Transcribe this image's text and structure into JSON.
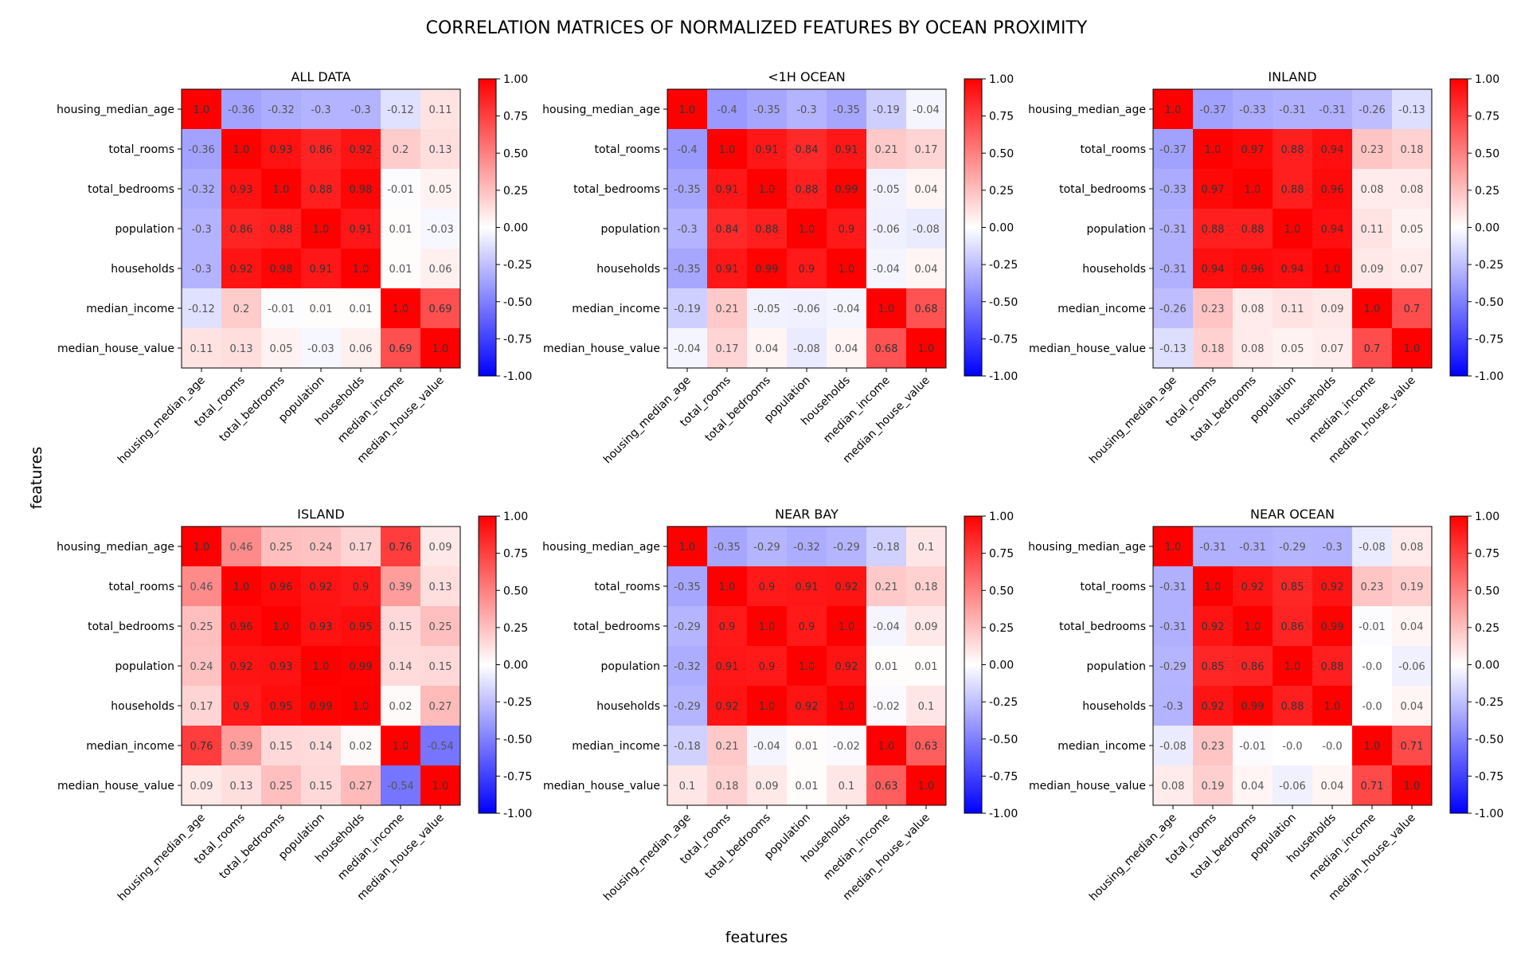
{
  "figure": {
    "title": "CORRELATION MATRICES OF NORMALIZED FEATURES BY OCEAN PROXIMITY",
    "xlabel": "features",
    "ylabel": "features"
  },
  "colors": {
    "low": "#0000ff",
    "mid": "#ffffff",
    "high": "#ff0000",
    "cell_text": "#555555",
    "cell_text_strong": "#333333"
  },
  "chart_data": [
    {
      "type": "heatmap",
      "title": "ALL DATA",
      "labels": [
        "housing_median_age",
        "total_rooms",
        "total_bedrooms",
        "population",
        "households",
        "median_income",
        "median_house_value"
      ],
      "colorbar_range": [
        -1,
        1
      ],
      "colorbar_ticks": [
        "1.00",
        "0.75",
        "0.50",
        "0.25",
        "0.00",
        "-0.25",
        "-0.50",
        "-0.75",
        "-1.00"
      ],
      "matrix": [
        [
          "1.0",
          "-0.36",
          "-0.32",
          "-0.3",
          "-0.3",
          "-0.12",
          "0.11"
        ],
        [
          "-0.36",
          "1.0",
          "0.93",
          "0.86",
          "0.92",
          "0.2",
          "0.13"
        ],
        [
          "-0.32",
          "0.93",
          "1.0",
          "0.88",
          "0.98",
          "-0.01",
          "0.05"
        ],
        [
          "-0.3",
          "0.86",
          "0.88",
          "1.0",
          "0.91",
          "0.01",
          "-0.03"
        ],
        [
          "-0.3",
          "0.92",
          "0.98",
          "0.91",
          "1.0",
          "0.01",
          "0.06"
        ],
        [
          "-0.12",
          "0.2",
          "-0.01",
          "0.01",
          "0.01",
          "1.0",
          "0.69"
        ],
        [
          "0.11",
          "0.13",
          "0.05",
          "-0.03",
          "0.06",
          "0.69",
          "1.0"
        ]
      ]
    },
    {
      "type": "heatmap",
      "title": "<1H OCEAN",
      "labels": [
        "housing_median_age",
        "total_rooms",
        "total_bedrooms",
        "population",
        "households",
        "median_income",
        "median_house_value"
      ],
      "colorbar_range": [
        -1,
        1
      ],
      "colorbar_ticks": [
        "1.00",
        "0.75",
        "0.50",
        "0.25",
        "0.00",
        "-0.25",
        "-0.50",
        "-0.75",
        "-1.00"
      ],
      "matrix": [
        [
          "1.0",
          "-0.4",
          "-0.35",
          "-0.3",
          "-0.35",
          "-0.19",
          "-0.04"
        ],
        [
          "-0.4",
          "1.0",
          "0.91",
          "0.84",
          "0.91",
          "0.21",
          "0.17"
        ],
        [
          "-0.35",
          "0.91",
          "1.0",
          "0.88",
          "0.99",
          "-0.05",
          "0.04"
        ],
        [
          "-0.3",
          "0.84",
          "0.88",
          "1.0",
          "0.9",
          "-0.06",
          "-0.08"
        ],
        [
          "-0.35",
          "0.91",
          "0.99",
          "0.9",
          "1.0",
          "-0.04",
          "0.04"
        ],
        [
          "-0.19",
          "0.21",
          "-0.05",
          "-0.06",
          "-0.04",
          "1.0",
          "0.68"
        ],
        [
          "-0.04",
          "0.17",
          "0.04",
          "-0.08",
          "0.04",
          "0.68",
          "1.0"
        ]
      ]
    },
    {
      "type": "heatmap",
      "title": "INLAND",
      "labels": [
        "housing_median_age",
        "total_rooms",
        "total_bedrooms",
        "population",
        "households",
        "median_income",
        "median_house_value"
      ],
      "colorbar_range": [
        -1,
        1
      ],
      "colorbar_ticks": [
        "1.00",
        "0.75",
        "0.50",
        "0.25",
        "0.00",
        "-0.25",
        "-0.50",
        "-0.75",
        "-1.00"
      ],
      "matrix": [
        [
          "1.0",
          "-0.37",
          "-0.33",
          "-0.31",
          "-0.31",
          "-0.26",
          "-0.13"
        ],
        [
          "-0.37",
          "1.0",
          "0.97",
          "0.88",
          "0.94",
          "0.23",
          "0.18"
        ],
        [
          "-0.33",
          "0.97",
          "1.0",
          "0.88",
          "0.96",
          "0.08",
          "0.08"
        ],
        [
          "-0.31",
          "0.88",
          "0.88",
          "1.0",
          "0.94",
          "0.11",
          "0.05"
        ],
        [
          "-0.31",
          "0.94",
          "0.96",
          "0.94",
          "1.0",
          "0.09",
          "0.07"
        ],
        [
          "-0.26",
          "0.23",
          "0.08",
          "0.11",
          "0.09",
          "1.0",
          "0.7"
        ],
        [
          "-0.13",
          "0.18",
          "0.08",
          "0.05",
          "0.07",
          "0.7",
          "1.0"
        ]
      ]
    },
    {
      "type": "heatmap",
      "title": "ISLAND",
      "labels": [
        "housing_median_age",
        "total_rooms",
        "total_bedrooms",
        "population",
        "households",
        "median_income",
        "median_house_value"
      ],
      "colorbar_range": [
        -1,
        1
      ],
      "colorbar_ticks": [
        "1.00",
        "0.75",
        "0.50",
        "0.25",
        "0.00",
        "-0.25",
        "-0.50",
        "-0.75",
        "-1.00"
      ],
      "matrix": [
        [
          "1.0",
          "0.46",
          "0.25",
          "0.24",
          "0.17",
          "0.76",
          "0.09"
        ],
        [
          "0.46",
          "1.0",
          "0.96",
          "0.92",
          "0.9",
          "0.39",
          "0.13"
        ],
        [
          "0.25",
          "0.96",
          "1.0",
          "0.93",
          "0.95",
          "0.15",
          "0.25"
        ],
        [
          "0.24",
          "0.92",
          "0.93",
          "1.0",
          "0.99",
          "0.14",
          "0.15"
        ],
        [
          "0.17",
          "0.9",
          "0.95",
          "0.99",
          "1.0",
          "0.02",
          "0.27"
        ],
        [
          "0.76",
          "0.39",
          "0.15",
          "0.14",
          "0.02",
          "1.0",
          "-0.54"
        ],
        [
          "0.09",
          "0.13",
          "0.25",
          "0.15",
          "0.27",
          "-0.54",
          "1.0"
        ]
      ]
    },
    {
      "type": "heatmap",
      "title": "NEAR BAY",
      "labels": [
        "housing_median_age",
        "total_rooms",
        "total_bedrooms",
        "population",
        "households",
        "median_income",
        "median_house_value"
      ],
      "colorbar_range": [
        -1,
        1
      ],
      "colorbar_ticks": [
        "1.00",
        "0.75",
        "0.50",
        "0.25",
        "0.00",
        "-0.25",
        "-0.50",
        "-0.75",
        "-1.00"
      ],
      "matrix": [
        [
          "1.0",
          "-0.35",
          "-0.29",
          "-0.32",
          "-0.29",
          "-0.18",
          "0.1"
        ],
        [
          "-0.35",
          "1.0",
          "0.9",
          "0.91",
          "0.92",
          "0.21",
          "0.18"
        ],
        [
          "-0.29",
          "0.9",
          "1.0",
          "0.9",
          "1.0",
          "-0.04",
          "0.09"
        ],
        [
          "-0.32",
          "0.91",
          "0.9",
          "1.0",
          "0.92",
          "0.01",
          "0.01"
        ],
        [
          "-0.29",
          "0.92",
          "1.0",
          "0.92",
          "1.0",
          "-0.02",
          "0.1"
        ],
        [
          "-0.18",
          "0.21",
          "-0.04",
          "0.01",
          "-0.02",
          "1.0",
          "0.63"
        ],
        [
          "0.1",
          "0.18",
          "0.09",
          "0.01",
          "0.1",
          "0.63",
          "1.0"
        ]
      ]
    },
    {
      "type": "heatmap",
      "title": "NEAR OCEAN",
      "labels": [
        "housing_median_age",
        "total_rooms",
        "total_bedrooms",
        "population",
        "households",
        "median_income",
        "median_house_value"
      ],
      "colorbar_range": [
        -1,
        1
      ],
      "colorbar_ticks": [
        "1.00",
        "0.75",
        "0.50",
        "0.25",
        "0.00",
        "-0.25",
        "-0.50",
        "-0.75",
        "-1.00"
      ],
      "matrix": [
        [
          "1.0",
          "-0.31",
          "-0.31",
          "-0.29",
          "-0.3",
          "-0.08",
          "0.08"
        ],
        [
          "-0.31",
          "1.0",
          "0.92",
          "0.85",
          "0.92",
          "0.23",
          "0.19"
        ],
        [
          "-0.31",
          "0.92",
          "1.0",
          "0.86",
          "0.99",
          "-0.01",
          "0.04"
        ],
        [
          "-0.29",
          "0.85",
          "0.86",
          "1.0",
          "0.88",
          "-0.0",
          "-0.06"
        ],
        [
          "-0.3",
          "0.92",
          "0.99",
          "0.88",
          "1.0",
          "-0.0",
          "0.04"
        ],
        [
          "-0.08",
          "0.23",
          "-0.01",
          "-0.0",
          "-0.0",
          "1.0",
          "0.71"
        ],
        [
          "0.08",
          "0.19",
          "0.04",
          "-0.06",
          "0.04",
          "0.71",
          "1.0"
        ]
      ]
    }
  ]
}
